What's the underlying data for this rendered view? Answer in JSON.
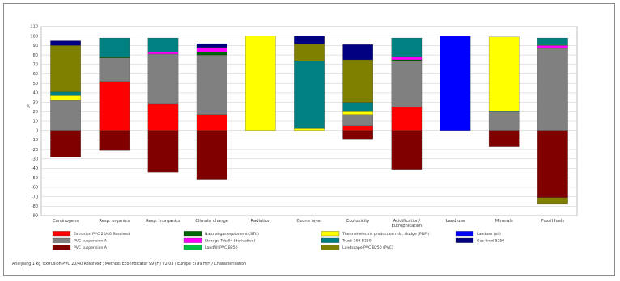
{
  "chart_data": {
    "type": "bar",
    "stacked": true,
    "ylabel": "%",
    "ylim": [
      -90,
      110
    ],
    "yticks": [
      110,
      100,
      90,
      80,
      70,
      60,
      50,
      40,
      30,
      20,
      10,
      0,
      -10,
      -20,
      -30,
      -40,
      -50,
      -60,
      -70,
      -80,
      -90
    ],
    "grid": true,
    "legend_position": "bottom",
    "categories": [
      "Carcinogens",
      "Resp. organics",
      "Resp. inorganics",
      "Climate change",
      "Radiation",
      "Ozone layer",
      "Ecotoxicity",
      "Acidification/ Eutrophication",
      "Land use",
      "Minerals",
      "Fossil fuels"
    ],
    "colors": {
      "red": "#ff0000",
      "dark_red": "#800000",
      "gray": "#808080",
      "olive": "#808000",
      "yellow": "#ffff00",
      "teal": "#008080",
      "navy": "#000080",
      "blue": "#0000ff",
      "magenta": "#ff00ff",
      "green": "#00c040",
      "dark_green": "#006400"
    },
    "series": [
      {
        "name": "Extrusion PVC 20/40 Resolved",
        "color": "red",
        "values": [
          0,
          52,
          28,
          17,
          0,
          0,
          5,
          25,
          0,
          0,
          0
        ]
      },
      {
        "name": "PVC suspension A",
        "color": "gray",
        "values": [
          32,
          25,
          53,
          63,
          0,
          0,
          12,
          49,
          0,
          20,
          87
        ]
      },
      {
        "name": "PVC suspension A (negative)",
        "color": "dark_red",
        "values": [
          -28,
          -21,
          -44,
          -52,
          0,
          0,
          -9,
          -41,
          0,
          -17,
          -71
        ]
      },
      {
        "name": "Natural gas equipment (STU)",
        "color": "dark_green",
        "values": [
          0,
          1,
          0,
          3,
          0,
          0,
          0,
          1,
          0,
          0,
          0
        ]
      },
      {
        "name": "Storage Totally (derivative)",
        "color": "magenta",
        "values": [
          0,
          0,
          2,
          5,
          0,
          0,
          0,
          3,
          0,
          0,
          3
        ]
      },
      {
        "name": "Landfill PVC B250",
        "color": "green",
        "values": [
          0,
          0,
          0,
          0,
          0,
          0,
          0,
          0,
          0,
          1,
          1
        ]
      },
      {
        "name": "Thermal-electric production mix, sludge (PDF-)",
        "color": "yellow",
        "values": [
          5,
          0,
          0,
          0,
          100,
          2,
          3,
          0,
          0,
          78,
          0
        ]
      },
      {
        "name": "Truck 169 B250",
        "color": "teal",
        "values": [
          4,
          20,
          15,
          0,
          0,
          72,
          10,
          20,
          0,
          0,
          7
        ]
      },
      {
        "name": "Landscape PVC B250 (PVC)",
        "color": "olive",
        "values": [
          49,
          0,
          0,
          0,
          0,
          18,
          45,
          0,
          0,
          0,
          -7
        ]
      },
      {
        "name": "Landuse (oil)",
        "color": "blue",
        "values": [
          0,
          0,
          0,
          0,
          0,
          0,
          0,
          0,
          100,
          0,
          0
        ]
      },
      {
        "name": "Gas-fired B250",
        "color": "navy",
        "values": [
          5,
          0,
          0,
          4,
          0,
          8,
          16,
          0,
          0,
          0,
          0
        ]
      }
    ],
    "footer": "Analysing 1 kg 'Extrusion PVC 20/40 Resolved'; Method: Eco-indicator 99 (H) V2.03 / Europe EI 99 H/H / Characterisation"
  },
  "legend": {
    "col1": [
      "Extrusion PVC 20/40 Resolved",
      "PVC suspension A",
      "PVC suspension A"
    ],
    "col2": [
      "Natural gas equipment (STU)",
      "Storage Totally (derivative)",
      "Landfill PVC B250"
    ],
    "col3": [
      "Thermal-electric production mix, sludge (PDF-)",
      "Truck 169 B250",
      "Landscape PVC B250 (PVC)"
    ],
    "col4": [
      "Landuse (oil)",
      "Gas-fired B250"
    ]
  }
}
